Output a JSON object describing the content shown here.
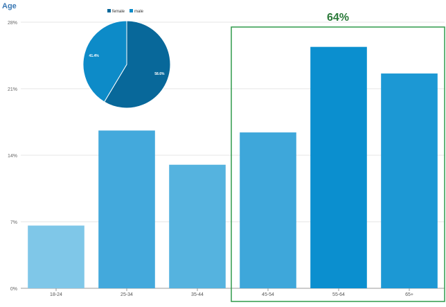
{
  "chart_data": [
    {
      "type": "bar",
      "title": "Age",
      "categories": [
        "18-24",
        "25-34",
        "35-44",
        "45-54",
        "55-64",
        "65+"
      ],
      "values": [
        6.6,
        16.6,
        13.0,
        16.4,
        25.4,
        22.6
      ],
      "ylim": [
        0,
        28
      ],
      "yticks": [
        "0%",
        "7%",
        "14%",
        "21%",
        "28%"
      ],
      "ytick_values": [
        0,
        7,
        14,
        21,
        28
      ],
      "grid": true,
      "bar_colors": [
        "#7fc7e8",
        "#43a9dc",
        "#55b3df",
        "#3ea7da",
        "#0b8fcf",
        "#1c98d4"
      ],
      "highlight": {
        "label": "64%",
        "categories": [
          "45-54",
          "55-64",
          "65+"
        ],
        "color": "#2e9a4a",
        "label_color": "#2b7a3a"
      }
    },
    {
      "type": "pie",
      "legend": [
        "female",
        "male"
      ],
      "values": [
        58.6,
        41.4
      ],
      "labels": [
        "58.6%",
        "41.4%"
      ],
      "colors": [
        "#08689a",
        "#0d8bc8"
      ],
      "legend_position": "top"
    }
  ]
}
